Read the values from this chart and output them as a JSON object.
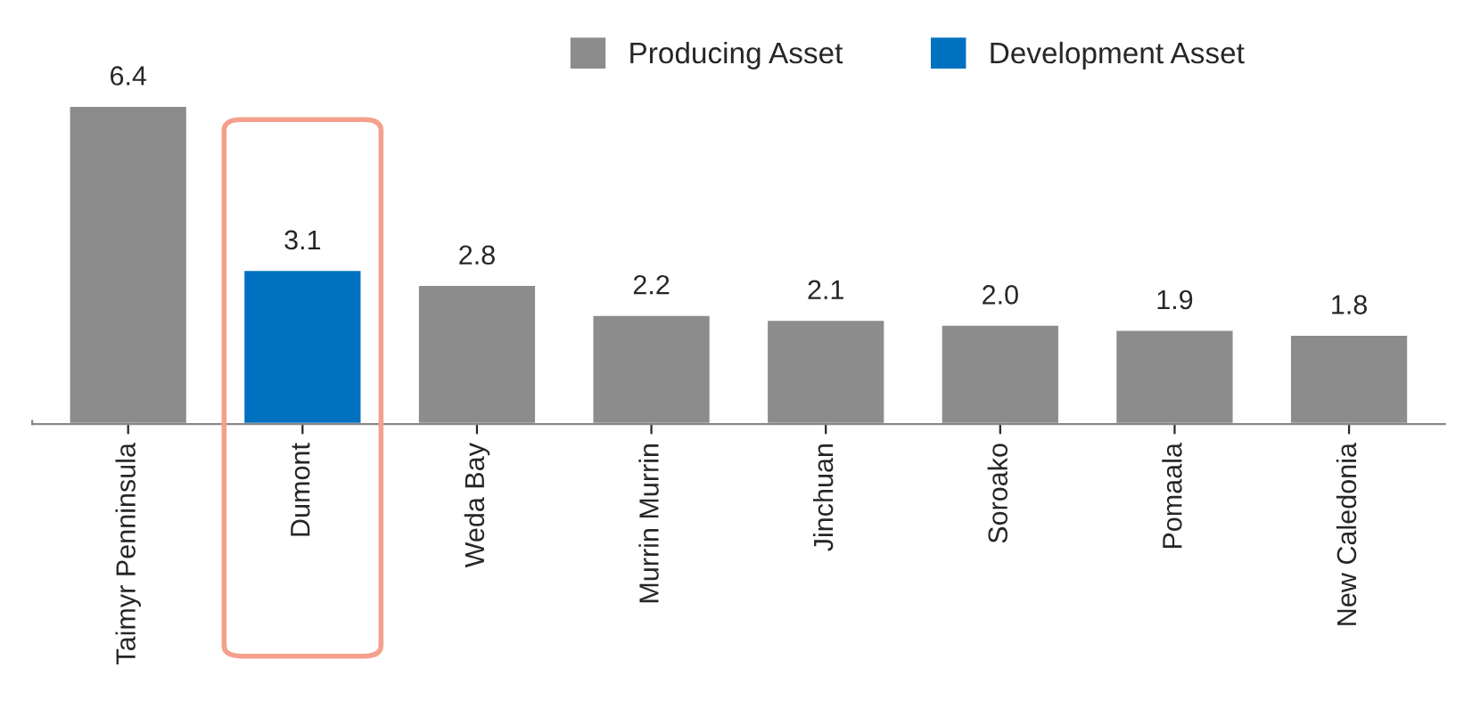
{
  "chart_data": {
    "type": "bar",
    "categories": [
      "Taimyr Penninsula",
      "Dumont",
      "Weda Bay",
      "Murrin Murrin",
      "Jinchuan",
      "Soroako",
      "Pomaala",
      "New Caledonia"
    ],
    "series": [
      {
        "name": "Producing Asset",
        "color": "#8c8c8c",
        "values": [
          6.4,
          null,
          2.8,
          2.2,
          2.1,
          2.0,
          1.9,
          1.8
        ],
        "value_labels": [
          "6.4",
          null,
          "2.8",
          "2.2",
          "2.1",
          "2.0",
          "1.9",
          "1.8"
        ]
      },
      {
        "name": "Development Asset",
        "color": "#0070c0",
        "values": [
          null,
          3.1,
          null,
          null,
          null,
          null,
          null,
          null
        ],
        "value_labels": [
          null,
          "3.1",
          null,
          null,
          null,
          null,
          null,
          null
        ]
      }
    ],
    "legend": "top"
  }
}
